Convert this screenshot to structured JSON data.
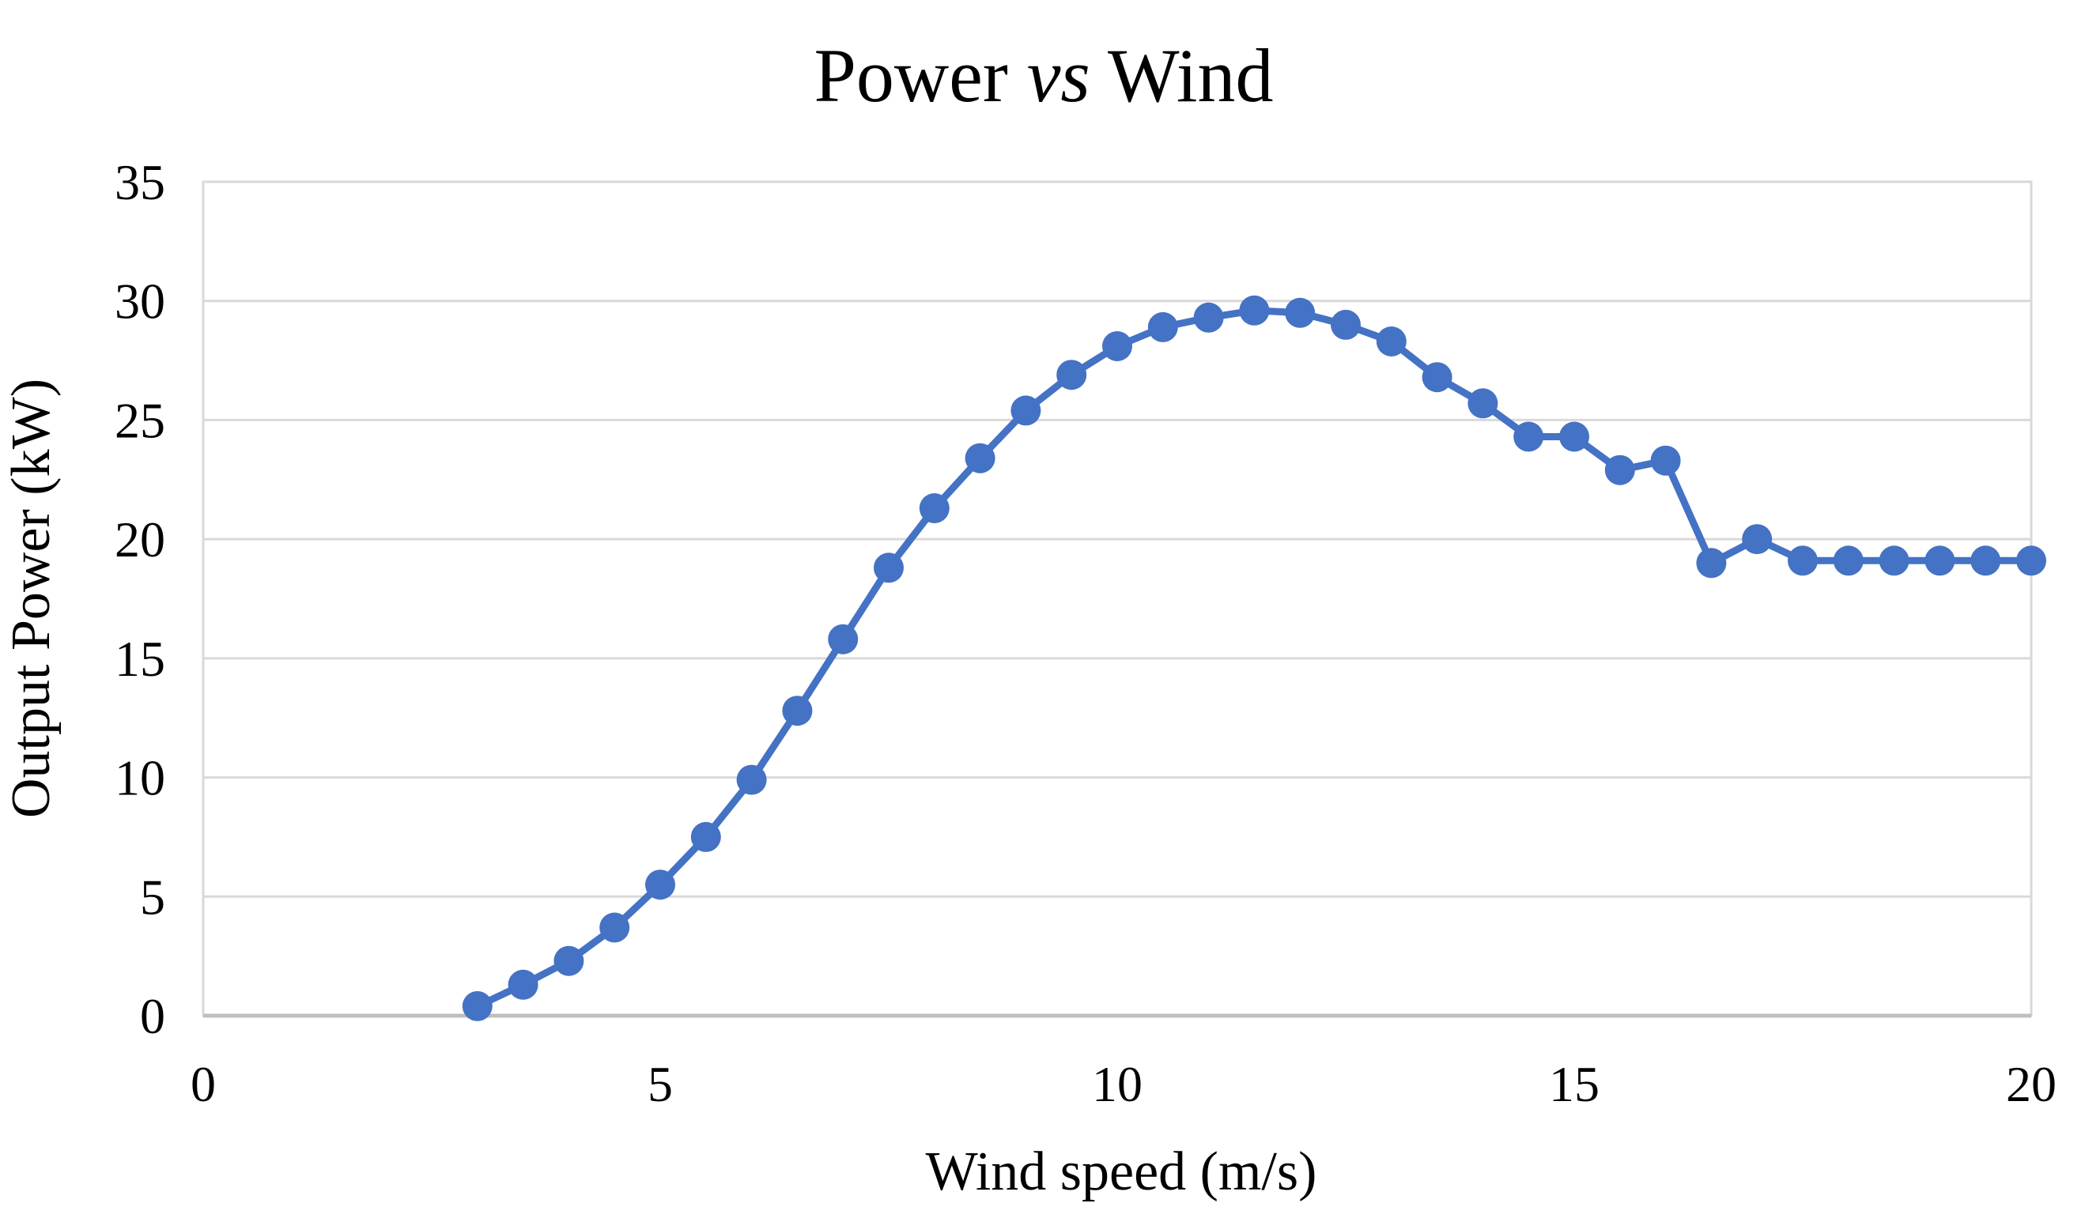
{
  "title": {
    "prefix": "Power ",
    "italic": "vs",
    "suffix": " Wind"
  },
  "chart_data": {
    "type": "line",
    "title": "Power vs Wind",
    "xlabel": "Wind speed (m/s)",
    "ylabel": "Output Power (kW)",
    "series": [
      {
        "name": "Output Power",
        "x": [
          3,
          3.5,
          4,
          4.5,
          5,
          5.5,
          6,
          6.5,
          7,
          7.5,
          8,
          8.5,
          9,
          9.5,
          10,
          10.5,
          11,
          11.5,
          12,
          12.5,
          13,
          13.5,
          14,
          14.5,
          15,
          15.5,
          16,
          16.5,
          17,
          17.5,
          18,
          18.5,
          19,
          19.5,
          20
        ],
        "y": [
          0.4,
          1.3,
          2.3,
          3.7,
          5.5,
          7.5,
          9.9,
          12.8,
          15.8,
          18.8,
          21.3,
          23.4,
          25.4,
          26.9,
          28.1,
          28.9,
          29.3,
          29.6,
          29.5,
          29.0,
          28.3,
          26.8,
          25.7,
          24.3,
          24.3,
          22.9,
          23.3,
          19.0,
          20.0,
          19.1,
          19.1,
          19.1,
          19.1,
          19.1,
          19.1
        ]
      }
    ],
    "xlim": [
      0,
      20
    ],
    "ylim": [
      0,
      35
    ],
    "x_ticks": [
      0,
      5,
      10,
      15,
      20
    ],
    "y_ticks": [
      0,
      5,
      10,
      15,
      20,
      25,
      30,
      35
    ],
    "grid": "horizontal",
    "legend": "none",
    "marker": "circle",
    "colors": {
      "line": "#4472C4",
      "marker": "#4472C4",
      "gridline": "#D9D9D9",
      "plot_border": "#D9D9D9",
      "axis_line": "#BFBFBF",
      "text": "#000000",
      "background": "#FFFFFF"
    }
  }
}
